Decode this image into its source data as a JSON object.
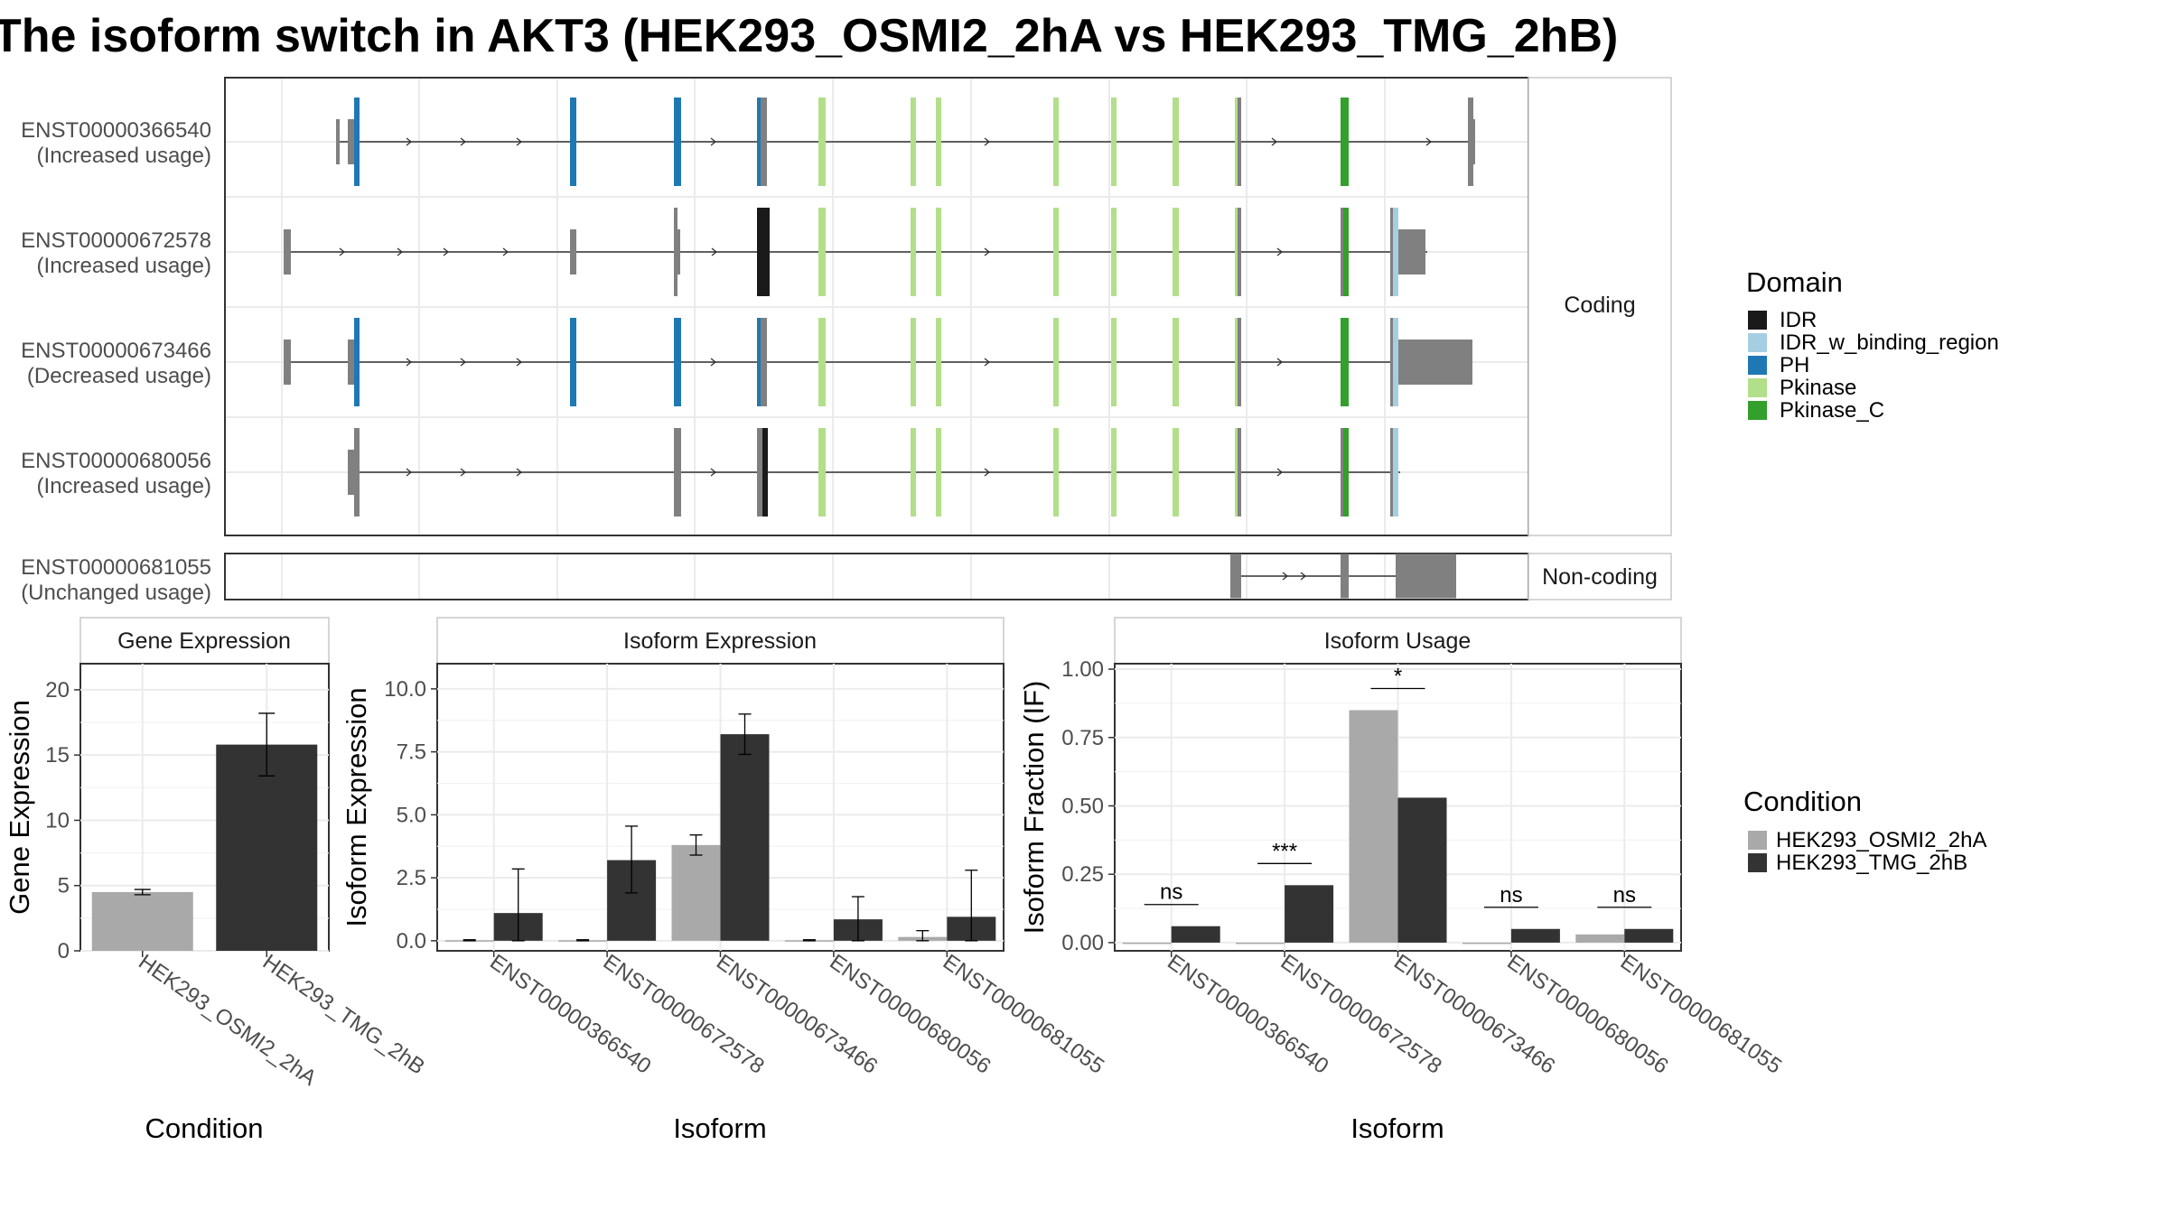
{
  "title": "The isoform switch in AKT3 (HEK293_OSMI2_2hA vs HEK293_TMG_2hB)",
  "colors": {
    "IDR": "#1a1a1a",
    "IDR_w_binding_region": "#a6cee3",
    "PH": "#1f78b4",
    "Pkinase": "#b2df8a",
    "Pkinase_C": "#33a02c",
    "noncoding_exon": "#808080",
    "HEK293_OSMI2_2hA": "#a9a9a9",
    "HEK293_TMG_2hB": "#333333"
  },
  "structure": {
    "coding_strip": "Coding",
    "noncoding_strip": "Non-coding",
    "transcripts": [
      {
        "id": "ENST00000366540",
        "usage": "(Increased usage)"
      },
      {
        "id": "ENST00000672578",
        "usage": "(Increased usage)"
      },
      {
        "id": "ENST00000673466",
        "usage": "(Decreased usage)"
      },
      {
        "id": "ENST00000680056",
        "usage": "(Increased usage)"
      },
      {
        "id": "ENST00000681055",
        "usage": "(Unchanged usage)"
      }
    ],
    "domain_legend": {
      "title": "Domain",
      "items": [
        "IDR",
        "IDR_w_binding_region",
        "PH",
        "Pkinase",
        "Pkinase_C"
      ]
    }
  },
  "condition_legend": {
    "title": "Condition",
    "items": [
      "HEK293_OSMI2_2hA",
      "HEK293_TMG_2hB"
    ]
  },
  "chart_data": [
    {
      "type": "bar",
      "title": "Gene Expression",
      "xlabel": "Condition",
      "ylabel": "Gene Expression",
      "categories": [
        "HEK293_OSMI2_2hA",
        "HEK293_TMG_2hB"
      ],
      "values": [
        4.5,
        15.8
      ],
      "errors": [
        [
          4.3,
          4.7
        ],
        [
          13.4,
          18.2
        ]
      ],
      "ylim": [
        0,
        22
      ],
      "yticks": [
        "0",
        "5",
        "10",
        "15",
        "20"
      ]
    },
    {
      "type": "bar",
      "title": "Isoform Expression",
      "xlabel": "Isoform",
      "ylabel": "Isoform Expression",
      "categories": [
        "ENST00000366540",
        "ENST00000672578",
        "ENST00000673466",
        "ENST00000680056",
        "ENST00000681055"
      ],
      "series": [
        {
          "name": "HEK293_OSMI2_2hA",
          "values": [
            0.02,
            0.02,
            3.8,
            0.02,
            0.15
          ],
          "errors": [
            [
              0.0,
              0.04
            ],
            [
              0.0,
              0.04
            ],
            [
              3.4,
              4.2
            ],
            [
              0.0,
              0.04
            ],
            [
              0.0,
              0.4
            ]
          ]
        },
        {
          "name": "HEK293_TMG_2hB",
          "values": [
            1.1,
            3.2,
            8.2,
            0.85,
            0.95
          ],
          "errors": [
            [
              0.0,
              2.85
            ],
            [
              1.9,
              4.55
            ],
            [
              7.4,
              9.0
            ],
            [
              0.0,
              1.75
            ],
            [
              0.0,
              2.8
            ]
          ]
        }
      ],
      "ylim": [
        -0.4,
        11
      ],
      "yticks": [
        "0.0",
        "2.5",
        "5.0",
        "7.5",
        "10.0"
      ]
    },
    {
      "type": "bar",
      "title": "Isoform Usage",
      "xlabel": "Isoform",
      "ylabel": "Isoform Fraction (IF)",
      "categories": [
        "ENST00000366540",
        "ENST00000672578",
        "ENST00000673466",
        "ENST00000680056",
        "ENST00000681055"
      ],
      "series": [
        {
          "name": "HEK293_OSMI2_2hA",
          "values": [
            0.0,
            0.0,
            0.85,
            0.0,
            0.03
          ]
        },
        {
          "name": "HEK293_TMG_2hB",
          "values": [
            0.06,
            0.21,
            0.53,
            0.05,
            0.05
          ]
        }
      ],
      "significance": [
        "ns",
        "***",
        "*",
        "ns",
        "ns"
      ],
      "ylim": [
        -0.03,
        1.02
      ],
      "yticks": [
        "0.00",
        "0.25",
        "0.50",
        "0.75",
        "1.00"
      ]
    }
  ]
}
